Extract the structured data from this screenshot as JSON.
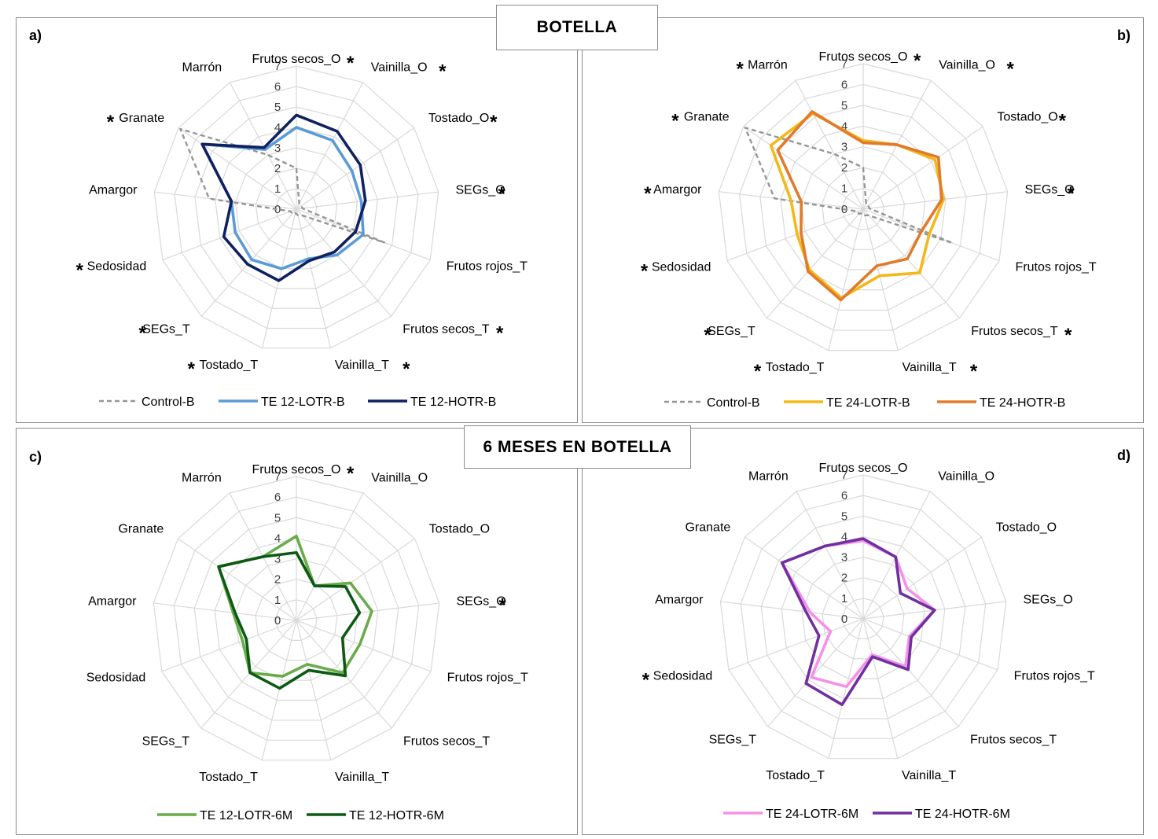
{
  "headers": {
    "top": "BOTELLA",
    "bottom": "6 MESES EN BOTELLA"
  },
  "axes": [
    "Frutos secos_O",
    "Vainilla_O",
    "Tostado_O",
    "SEGs_O",
    "Frutos rojos_T",
    "Frutos secos_T",
    "Vainilla_T",
    "Tostado_T",
    "SEGs_T",
    "Sedosidad",
    "Amargor",
    "Granate",
    "Marrón"
  ],
  "ticks": [
    "0",
    "1",
    "2",
    "3",
    "4",
    "5",
    "6",
    "7"
  ],
  "chart_data": [
    {
      "type": "radar",
      "panel": "a)",
      "axes": [
        "Frutos secos_O",
        "Vainilla_O",
        "Tostado_O",
        "SEGs_O",
        "Frutos rojos_T",
        "Frutos secos_T",
        "Vainilla_T",
        "Tostado_T",
        "SEGs_T",
        "Sedosidad",
        "Amargor",
        "Granate",
        "Marrón"
      ],
      "range": [
        0,
        7
      ],
      "significant": [
        "Frutos secos_O",
        "Vainilla_O",
        "Tostado_O",
        "SEGs_O",
        "Frutos secos_T",
        "Vainilla_T",
        "Tostado_T",
        "SEGs_T",
        "Sedosidad",
        "Granate"
      ],
      "series": [
        {
          "name": "Control-B",
          "color": "#969696",
          "dash": true,
          "values": [
            2.0,
            0.3,
            0.3,
            0.3,
            4.6,
            0.4,
            0.3,
            0.2,
            0.3,
            0.3,
            4.3,
            6.9,
            3.0
          ]
        },
        {
          "name": "TE 12-LOTR-B",
          "color": "#5b9bd5",
          "dash": false,
          "values": [
            4.0,
            3.8,
            3.3,
            3.2,
            3.5,
            3.0,
            2.5,
            3.0,
            3.3,
            3.2,
            3.2,
            5.6,
            3.3
          ]
        },
        {
          "name": "TE 12-HOTR-B",
          "color": "#102060",
          "dash": false,
          "values": [
            4.6,
            4.3,
            3.8,
            3.4,
            3.1,
            2.8,
            2.6,
            3.6,
            3.6,
            3.8,
            3.2,
            5.6,
            3.4
          ]
        }
      ]
    },
    {
      "type": "radar",
      "panel": "b)",
      "axes": [
        "Frutos secos_O",
        "Vainilla_O",
        "Tostado_O",
        "SEGs_O",
        "Frutos rojos_T",
        "Frutos secos_T",
        "Vainilla_T",
        "Tostado_T",
        "SEGs_T",
        "Sedosidad",
        "Amargor",
        "Granate",
        "Marrón"
      ],
      "range": [
        0,
        7
      ],
      "significant": [
        "Frutos secos_O",
        "Vainilla_O",
        "Tostado_O",
        "SEGs_O",
        "Frutos secos_T",
        "Vainilla_T",
        "Tostado_T",
        "SEGs_T",
        "Sedosidad",
        "Amargor",
        "Granate",
        "Marrón"
      ],
      "series": [
        {
          "name": "Control-B",
          "color": "#969696",
          "dash": true,
          "values": [
            2.0,
            0.3,
            0.3,
            0.3,
            4.6,
            0.4,
            0.3,
            0.2,
            0.3,
            0.3,
            4.3,
            6.9,
            3.0
          ]
        },
        {
          "name": "TE 24-LOTR-B",
          "color": "#f2b81c",
          "dash": false,
          "values": [
            3.3,
            3.5,
            4.2,
            3.9,
            3.4,
            4.1,
            3.3,
            4.4,
            3.9,
            3.4,
            3.5,
            5.4,
            5.2
          ]
        },
        {
          "name": "TE 24-HOTR-B",
          "color": "#e07b2c",
          "dash": false,
          "values": [
            3.2,
            3.5,
            4.4,
            3.8,
            3.0,
            3.2,
            2.8,
            4.5,
            4.0,
            3.2,
            3.0,
            5.0,
            5.3
          ]
        }
      ]
    },
    {
      "type": "radar",
      "panel": "c)",
      "axes": [
        "Frutos secos_O",
        "Vainilla_O",
        "Tostado_O",
        "SEGs_O",
        "Frutos rojos_T",
        "Frutos secos_T",
        "Vainilla_T",
        "Tostado_T",
        "SEGs_T",
        "Sedosidad",
        "Amargor",
        "Granate",
        "Marrón"
      ],
      "range": [
        0,
        7
      ],
      "significant": [
        "Frutos secos_O",
        "SEGs_O"
      ],
      "series": [
        {
          "name": "TE 12-LOTR-6M",
          "color": "#6aab4a",
          "dash": false,
          "values": [
            4.1,
            1.9,
            3.2,
            3.7,
            3.3,
            3.4,
            2.2,
            2.8,
            3.4,
            2.8,
            3.1,
            4.6,
            3.5
          ]
        },
        {
          "name": "TE 12-HOTR-6M",
          "color": "#0c5a14",
          "dash": false,
          "values": [
            3.3,
            1.9,
            2.9,
            3.1,
            2.4,
            3.6,
            2.5,
            3.4,
            3.4,
            2.6,
            3.0,
            4.6,
            3.5
          ]
        }
      ]
    },
    {
      "type": "radar",
      "panel": "d)",
      "axes": [
        "Frutos secos_O",
        "Vainilla_O",
        "Tostado_O",
        "SEGs_O",
        "Frutos rojos_T",
        "Frutos secos_T",
        "Vainilla_T",
        "Tostado_T",
        "SEGs_T",
        "Sedosidad",
        "Amargor",
        "Granate",
        "Marrón"
      ],
      "range": [
        0,
        7
      ],
      "significant": [
        "Sedosidad"
      ],
      "series": [
        {
          "name": "TE 24-LOTR-6M",
          "color": "#f590e8",
          "dash": false,
          "values": [
            3.8,
            3.4,
            2.6,
            3.5,
            2.4,
            3.1,
            1.8,
            3.4,
            3.8,
            1.7,
            2.6,
            4.8,
            4.0
          ]
        },
        {
          "name": "TE 24-HOTR-6M",
          "color": "#7030a0",
          "dash": false,
          "values": [
            3.9,
            3.4,
            2.2,
            3.5,
            2.5,
            3.3,
            1.9,
            4.3,
            4.2,
            2.3,
            2.8,
            4.8,
            4.0
          ]
        }
      ]
    }
  ]
}
